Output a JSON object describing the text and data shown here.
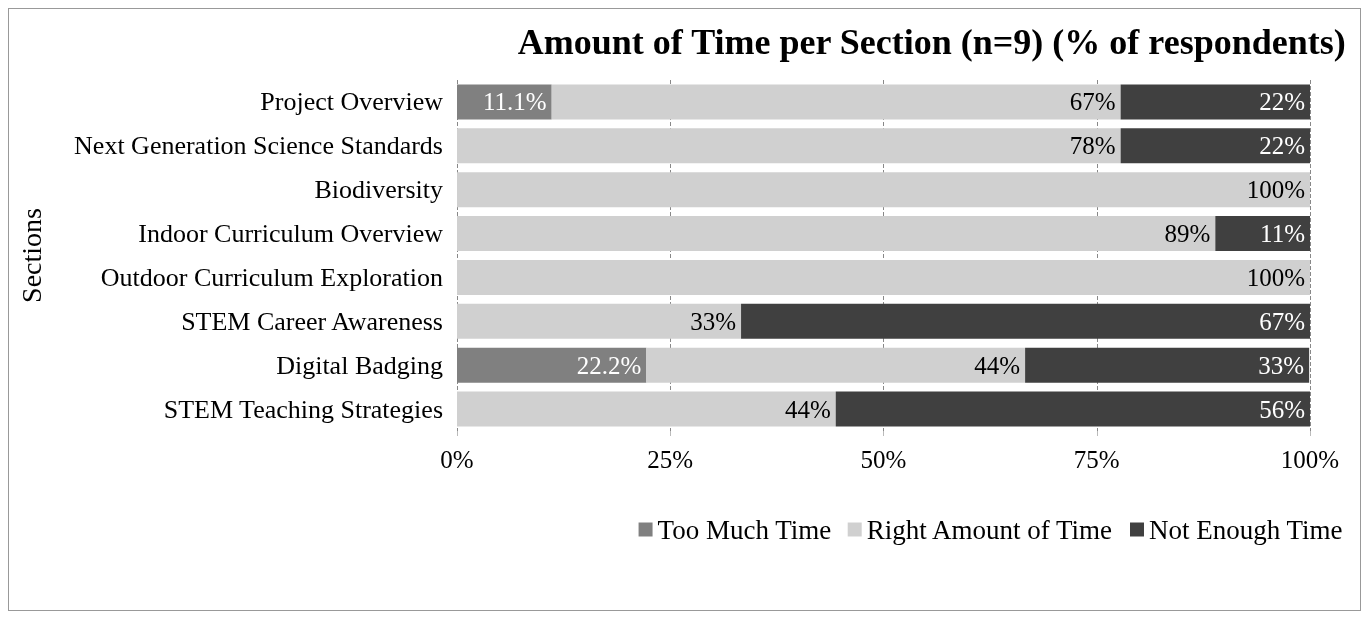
{
  "chart_data": {
    "type": "bar",
    "orientation": "horizontal",
    "stacked": true,
    "title": "Amount of Time per Section (n=9) (% of respondents)",
    "ylabel": "Sections",
    "categories": [
      "Project Overview",
      "Next Generation Science Standards",
      "Biodiversity",
      "Indoor Curriculum Overview",
      "Outdoor Curriculum Exploration",
      "STEM Career Awareness",
      "Digital Badging",
      "STEM Teaching Strategies"
    ],
    "series": [
      {
        "name": "Too Much Time",
        "color": "#808080",
        "values": [
          11.1,
          null,
          null,
          null,
          null,
          null,
          22.2,
          null
        ],
        "value_labels": [
          "11.1%",
          null,
          null,
          null,
          null,
          null,
          "22.2%",
          null
        ]
      },
      {
        "name": "Right Amount of Time",
        "color": "#d0d0d0",
        "values": [
          66.7,
          77.8,
          100,
          88.9,
          100,
          33.3,
          44.4,
          44.4
        ],
        "value_labels": [
          "67%",
          "78%",
          "100%",
          "89%",
          "100%",
          "33%",
          "44%",
          "44%"
        ]
      },
      {
        "name": "Not Enough Time",
        "color": "#404040",
        "values": [
          22.2,
          22.2,
          null,
          11.1,
          null,
          66.7,
          33.3,
          55.6
        ],
        "value_labels": [
          "22%",
          "22%",
          null,
          "11%",
          null,
          "67%",
          "33%",
          "56%"
        ]
      }
    ],
    "xlim": [
      0,
      100
    ],
    "xticks": [
      {
        "value": 0,
        "label": "0%"
      },
      {
        "value": 25,
        "label": "25%"
      },
      {
        "value": 50,
        "label": "50%"
      },
      {
        "value": 75,
        "label": "75%"
      },
      {
        "value": 100,
        "label": "100%"
      }
    ],
    "grid": "x",
    "legend": "bottom"
  }
}
